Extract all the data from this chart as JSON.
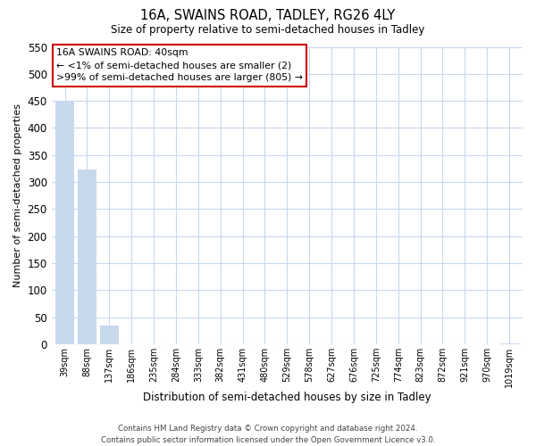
{
  "title": "16A, SWAINS ROAD, TADLEY, RG26 4LY",
  "subtitle": "Size of property relative to semi-detached houses in Tadley",
  "xlabel": "Distribution of semi-detached houses by size in Tadley",
  "ylabel": "Number of semi-detached properties",
  "bar_labels": [
    "39sqm",
    "88sqm",
    "137sqm",
    "186sqm",
    "235sqm",
    "284sqm",
    "333sqm",
    "382sqm",
    "431sqm",
    "480sqm",
    "529sqm",
    "578sqm",
    "627sqm",
    "676sqm",
    "725sqm",
    "774sqm",
    "823sqm",
    "872sqm",
    "921sqm",
    "970sqm",
    "1019sqm"
  ],
  "bar_values": [
    448,
    323,
    35,
    0,
    0,
    0,
    0,
    0,
    0,
    0,
    0,
    0,
    0,
    0,
    0,
    0,
    0,
    0,
    0,
    0,
    2
  ],
  "bar_color_normal": "#c8d8ed",
  "annotation_title": "16A SWAINS ROAD: 40sqm",
  "annotation_line1": "← <1% of semi-detached houses are smaller (2)",
  "annotation_line2": ">99% of semi-detached houses are larger (805) →",
  "annotation_box_color": "#ffffff",
  "annotation_box_edge": "#cc0000",
  "ylim": [
    0,
    550
  ],
  "yticks": [
    0,
    50,
    100,
    150,
    200,
    250,
    300,
    350,
    400,
    450,
    500,
    550
  ],
  "footer_line1": "Contains HM Land Registry data © Crown copyright and database right 2024.",
  "footer_line2": "Contains public sector information licensed under the Open Government Licence v3.0.",
  "background_color": "#ffffff",
  "grid_color": "#c8d8ed"
}
